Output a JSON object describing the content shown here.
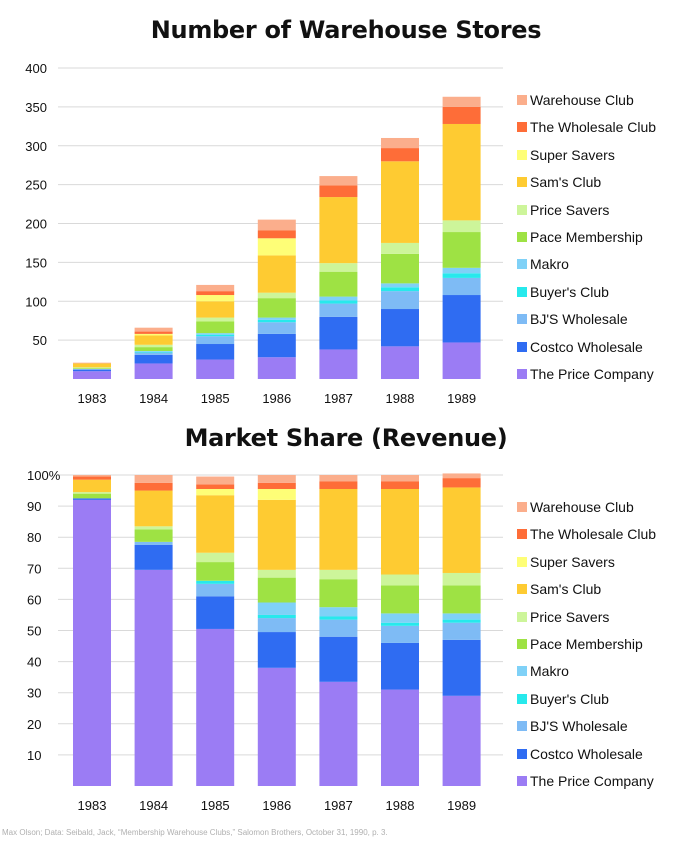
{
  "chart_data": [
    {
      "type": "bar",
      "stacked": true,
      "title": "Number of Warehouse Stores",
      "xlabel": "",
      "ylabel": "",
      "ylim": [
        0,
        400
      ],
      "yticks": [
        50,
        100,
        150,
        200,
        250,
        300,
        350,
        400
      ],
      "ytick_labels": [
        "50",
        "100",
        "150",
        "200",
        "250",
        "300",
        "350",
        "400"
      ],
      "grid": true,
      "legend": "right",
      "categories": [
        "1983",
        "1984",
        "1985",
        "1986",
        "1987",
        "1988",
        "1989"
      ],
      "series": [
        {
          "name": "The Price Company",
          "color": "#9b7cf4",
          "values": [
            10,
            20,
            25,
            28,
            38,
            42,
            47
          ]
        },
        {
          "name": "Costco Wholesale",
          "color": "#2f6cf2",
          "values": [
            2,
            11,
            20,
            30,
            42,
            48,
            61
          ]
        },
        {
          "name": "BJ'S Wholesale",
          "color": "#7ebbf5",
          "values": [
            1,
            3,
            10,
            15,
            17,
            23,
            22
          ]
        },
        {
          "name": "Buyer's Club",
          "color": "#27e9ec",
          "values": [
            0,
            1,
            2,
            3,
            4,
            5,
            6
          ]
        },
        {
          "name": "Makro",
          "color": "#7fd1f7",
          "values": [
            0,
            1,
            2,
            3,
            5,
            5,
            7
          ]
        },
        {
          "name": "Pace Membership",
          "color": "#9ee244",
          "values": [
            1,
            5,
            15,
            25,
            32,
            38,
            46
          ]
        },
        {
          "name": "Price Savers",
          "color": "#cdf59a",
          "values": [
            1,
            3,
            5,
            7,
            11,
            14,
            15
          ]
        },
        {
          "name": "Sam's Club",
          "color": "#fecb32",
          "values": [
            5,
            12,
            21,
            48,
            85,
            105,
            124
          ]
        },
        {
          "name": "Super Savers",
          "color": "#fefe77",
          "values": [
            0,
            2,
            8,
            22,
            0,
            0,
            0
          ]
        },
        {
          "name": "The Wholesale Club",
          "color": "#fe6d38",
          "values": [
            0,
            3,
            5,
            10,
            15,
            17,
            22
          ]
        },
        {
          "name": "Warehouse Club",
          "color": "#fbae8c",
          "values": [
            1,
            5,
            8,
            14,
            12,
            13,
            13
          ]
        }
      ]
    },
    {
      "type": "bar",
      "stacked": true,
      "title": "Market Share (Revenue)",
      "xlabel": "",
      "ylabel": "",
      "ylim": [
        0,
        100
      ],
      "yticks": [
        10,
        20,
        30,
        40,
        50,
        60,
        70,
        80,
        90,
        100
      ],
      "ytick_labels": [
        "10",
        "20",
        "30",
        "40",
        "50",
        "60",
        "70",
        "80",
        "90",
        "100%"
      ],
      "grid": true,
      "legend": "right",
      "categories": [
        "1983",
        "1984",
        "1985",
        "1986",
        "1987",
        "1988",
        "1989"
      ],
      "series": [
        {
          "name": "The Price Company",
          "color": "#9b7cf4",
          "values": [
            92,
            69.5,
            50.5,
            38,
            33.5,
            31,
            29
          ]
        },
        {
          "name": "Costco Wholesale",
          "color": "#2f6cf2",
          "values": [
            0.5,
            8,
            10.5,
            11.5,
            14.5,
            15,
            18
          ]
        },
        {
          "name": "BJ'S Wholesale",
          "color": "#7ebbf5",
          "values": [
            0,
            1,
            4,
            4.5,
            5.5,
            5.5,
            5.5
          ]
        },
        {
          "name": "Buyer's Club",
          "color": "#27e9ec",
          "values": [
            0,
            0,
            1,
            1,
            1,
            1,
            1
          ]
        },
        {
          "name": "Makro",
          "color": "#7fd1f7",
          "values": [
            0,
            0,
            0,
            4,
            3,
            3,
            2
          ]
        },
        {
          "name": "Pace Membership",
          "color": "#9ee244",
          "values": [
            1.5,
            4,
            6,
            8,
            9,
            9,
            9
          ]
        },
        {
          "name": "Price Savers",
          "color": "#cdf59a",
          "values": [
            0.5,
            1,
            3,
            2.5,
            3,
            3.5,
            4
          ]
        },
        {
          "name": "Sam's Club",
          "color": "#fecb32",
          "values": [
            4,
            11.5,
            18.5,
            22.5,
            26,
            27.5,
            27.5
          ]
        },
        {
          "name": "Super Savers",
          "color": "#fefe77",
          "values": [
            0,
            0,
            2,
            3.5,
            0,
            0,
            0
          ]
        },
        {
          "name": "The Wholesale Club",
          "color": "#fe6d38",
          "values": [
            1,
            2.5,
            1.5,
            2,
            2.5,
            2.5,
            3
          ]
        },
        {
          "name": "Warehouse Club",
          "color": "#fbae8c",
          "values": [
            0.5,
            2.5,
            2.5,
            2.5,
            2,
            2,
            1.5
          ]
        }
      ]
    }
  ],
  "credit": "Max Olson; Data: Seibald, Jack, “Membership Warehouse Clubs,” Salomon Brothers, October 31, 1990, p. 3."
}
